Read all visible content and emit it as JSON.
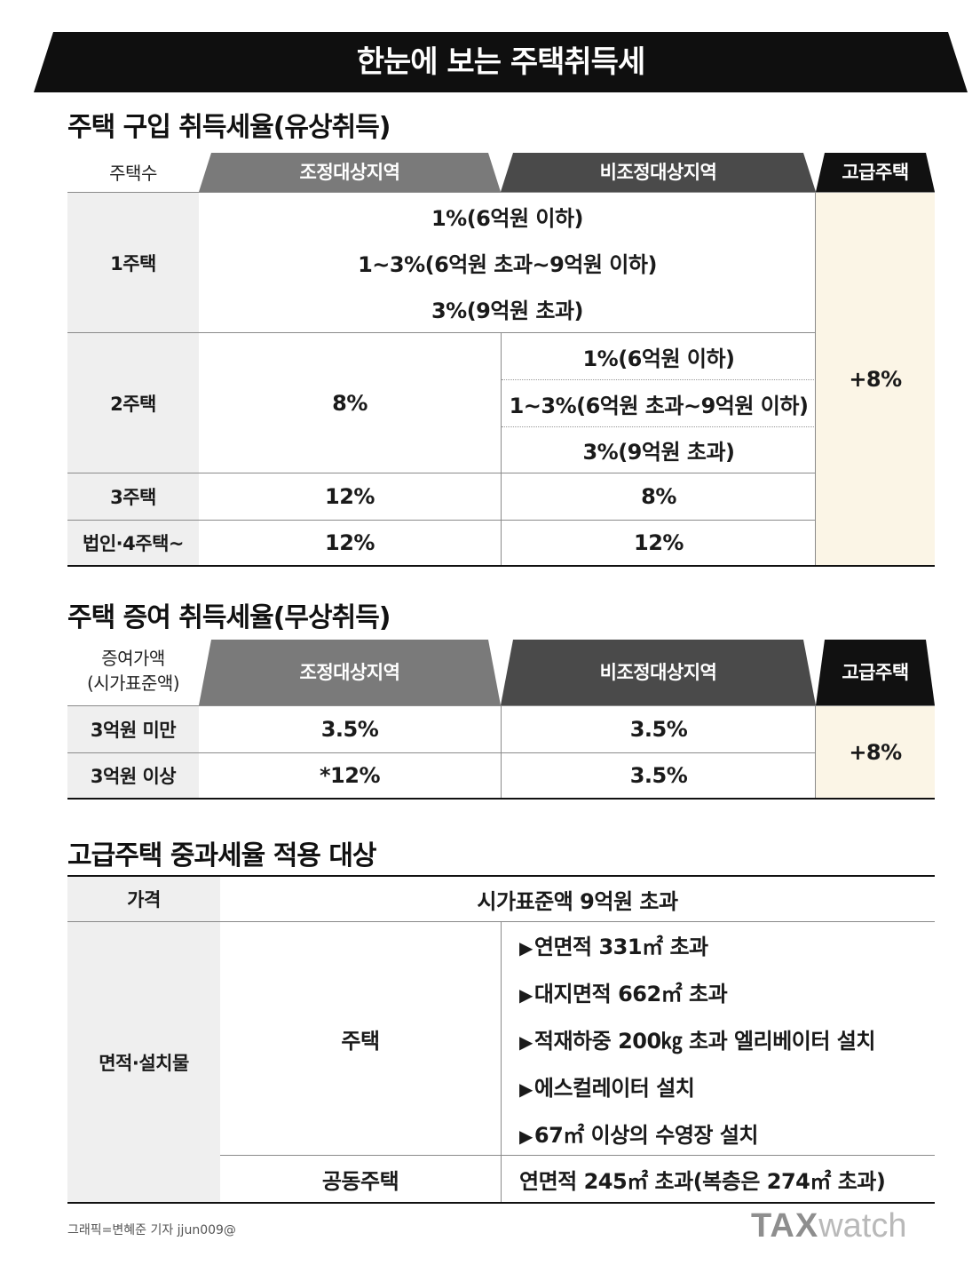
{
  "banner": {
    "title": "한눈에 보는 주택취득세"
  },
  "purchase": {
    "title": "주택 구입 취득세율(유상취득)",
    "headers": {
      "count": "주택수",
      "adjusted": "조정대상지역",
      "non_adjusted": "비조정대상지역",
      "luxury": "고급주택"
    },
    "row1": {
      "label": "1주택",
      "lines": [
        "1%(6억원 이하)",
        "1~3%(6억원 초과~9억원 이하)",
        "3%(9억원 초과)"
      ]
    },
    "row2": {
      "label": "2주택",
      "adjusted": "8%",
      "non_adjusted": [
        "1%(6억원 이하)",
        "1~3%(6억원 초과~9억원 이하)",
        "3%(9억원 초과)"
      ]
    },
    "row3": {
      "label": "3주택",
      "adjusted": "12%",
      "non_adjusted": "8%"
    },
    "row4": {
      "label": "법인·4주택~",
      "adjusted": "12%",
      "non_adjusted": "12%"
    },
    "luxury_value": "+8%"
  },
  "gift": {
    "title": "주택 증여 취득세율(무상취득)",
    "headers": {
      "amount_line1": "증여가액",
      "amount_line2": "(시가표준액)",
      "adjusted": "조정대상지역",
      "non_adjusted": "비조정대상지역",
      "luxury": "고급주택"
    },
    "row1": {
      "label": "3억원 미만",
      "adjusted": "3.5%",
      "non_adjusted": "3.5%"
    },
    "row2": {
      "label": "3억원 이상",
      "adjusted": "*12%",
      "non_adjusted": "3.5%"
    },
    "luxury_value": "+8%"
  },
  "luxury": {
    "title": "고급주택 중과세율 적용 대상",
    "price_label": "가격",
    "price_value": "시가표준액 9억원 초과",
    "area_label": "면적·설치물",
    "house_label": "주택",
    "house_items": [
      "연면적 331㎡ 초과",
      "대지면적 662㎡ 초과",
      "적재하중 200㎏ 초과 엘리베이터 설치",
      "에스컬레이터 설치",
      "67㎡ 이상의 수영장 설치"
    ],
    "bullet_marker": "▶",
    "apartment_label": "공동주택",
    "apartment_value": "연면적 245㎡ 초과(복층은 274㎡ 초과)"
  },
  "footer": {
    "credit": "그래픽=변혜준 기자 jjun009@",
    "logo_bold": "TAX",
    "logo_light": "watch"
  },
  "colors": {
    "adjusted_header": "#7a7a7a",
    "non_adjusted_header": "#4a4a4a",
    "luxury_header": "#111111",
    "luxury_cell": "#fbf5e6",
    "label_cell": "#efefef"
  }
}
